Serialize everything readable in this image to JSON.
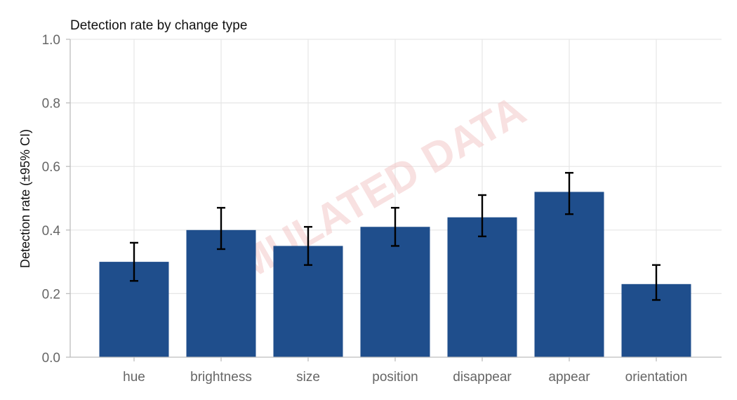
{
  "chart_data": {
    "type": "bar",
    "title": "Detection rate by change type",
    "xlabel": "",
    "ylabel": "Detection rate (±95% CI)",
    "categories": [
      "hue",
      "brightness",
      "size",
      "position",
      "disappear",
      "appear",
      "orientation"
    ],
    "values": [
      0.3,
      0.4,
      0.35,
      0.41,
      0.44,
      0.52,
      0.23
    ],
    "ci_low": [
      0.24,
      0.34,
      0.29,
      0.35,
      0.38,
      0.45,
      0.18
    ],
    "ci_high": [
      0.36,
      0.47,
      0.41,
      0.47,
      0.51,
      0.58,
      0.29
    ],
    "ylim": [
      0,
      1.0
    ],
    "yticks": [
      "0.0",
      "0.2",
      "0.4",
      "0.6",
      "0.8",
      "1.0"
    ],
    "ytick_values": [
      0,
      0.2,
      0.4,
      0.6,
      0.8,
      1.0
    ],
    "grid": true,
    "bar_color": "#1f4e8c",
    "error_bar_color": "#000000",
    "grid_color": "#e6e6e6",
    "watermark": "SIMULATED DATA",
    "watermark_color": "#f2c9c9"
  }
}
